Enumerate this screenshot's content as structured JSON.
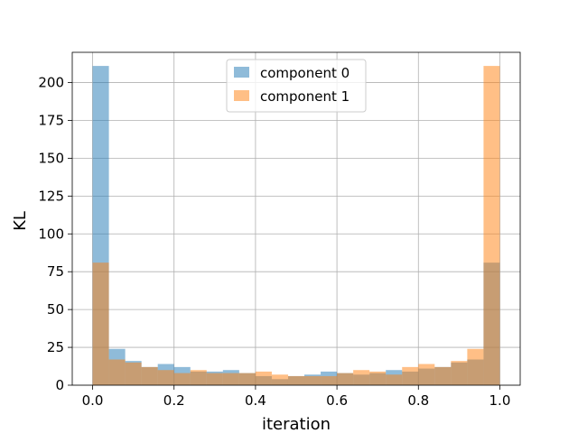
{
  "chart_data": {
    "type": "bar",
    "subtype": "histogram",
    "xlabel": "iteration",
    "ylabel": "KL",
    "xlim": [
      -0.05,
      1.05
    ],
    "ylim": [
      0,
      220
    ],
    "xticks": [
      0.0,
      0.2,
      0.4,
      0.6,
      0.8,
      1.0
    ],
    "xtick_labels": [
      "0.0",
      "0.2",
      "0.4",
      "0.6",
      "0.8",
      "1.0"
    ],
    "yticks": [
      0,
      25,
      50,
      75,
      100,
      125,
      150,
      175,
      200
    ],
    "ytick_labels": [
      "0",
      "25",
      "50",
      "75",
      "100",
      "125",
      "150",
      "175",
      "200"
    ],
    "grid": true,
    "legend_position": "upper-center",
    "bin_edges": [
      0.0,
      0.04,
      0.08,
      0.12,
      0.16,
      0.2,
      0.24,
      0.28,
      0.32,
      0.36,
      0.4,
      0.44,
      0.48,
      0.52,
      0.56,
      0.6,
      0.64,
      0.68,
      0.72,
      0.76,
      0.8,
      0.84,
      0.88,
      0.92,
      0.96,
      1.0
    ],
    "series": [
      {
        "name": "component 0",
        "color": "#1f77b4",
        "alpha": 0.5,
        "values": [
          211,
          24,
          16,
          12,
          14,
          12,
          9,
          9,
          10,
          8,
          6,
          4,
          6,
          7,
          9,
          8,
          7,
          8,
          10,
          9,
          11,
          12,
          15,
          17,
          81
        ]
      },
      {
        "name": "component 1",
        "color": "#ff7f0e",
        "alpha": 0.5,
        "values": [
          81,
          17,
          15,
          12,
          10,
          8,
          10,
          8,
          8,
          8,
          9,
          7,
          6,
          6,
          6,
          8,
          10,
          9,
          7,
          12,
          14,
          12,
          16,
          24,
          211
        ]
      }
    ]
  }
}
